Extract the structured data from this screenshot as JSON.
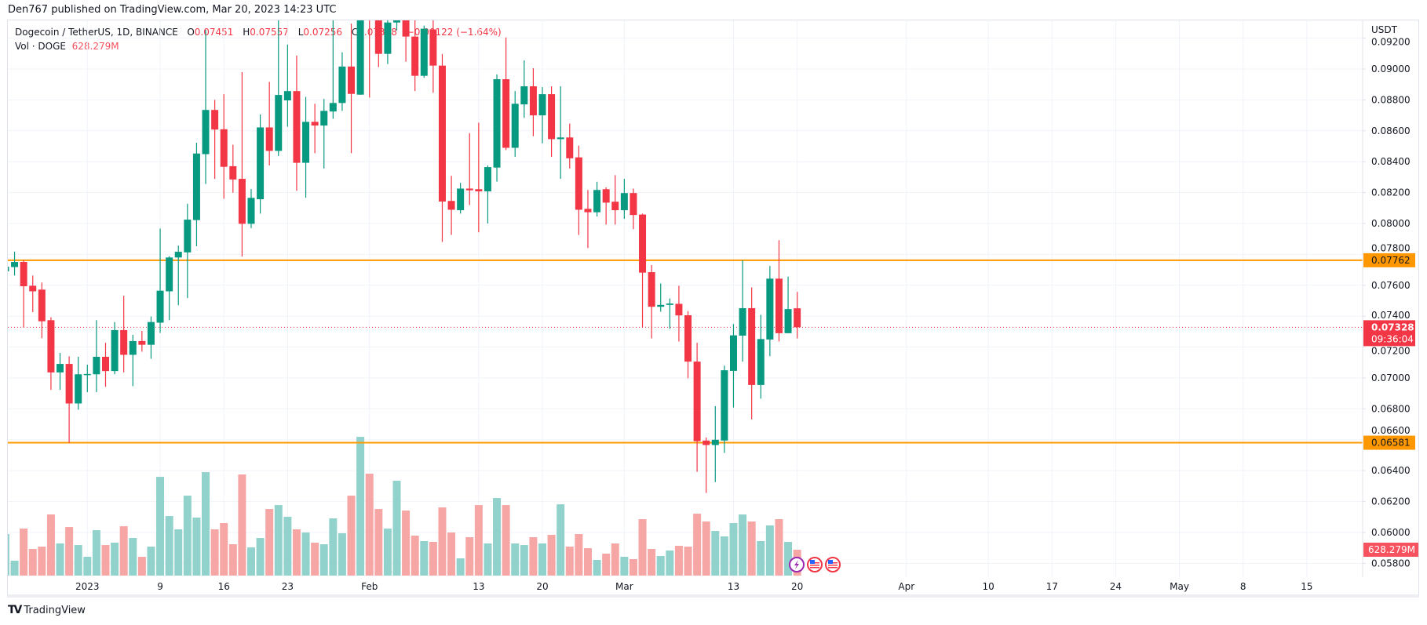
{
  "published": "Den767 published on TradingView.com, Mar 20, 2023 14:23 UTC",
  "legend": {
    "symbol": "Dogecoin / TetherUS, 1D, BINANCE",
    "open_label": "O",
    "open": "0.07451",
    "high_label": "H",
    "high": "0.07557",
    "low_label": "L",
    "low": "0.07256",
    "close_label": "C",
    "close": "0.07328",
    "change": "−0.00122 (−1.64%)",
    "volume_label": "Vol · DOGE",
    "volume": "628.279M"
  },
  "footer": {
    "logo_mark": "TV",
    "brand": "TradingView"
  },
  "colors": {
    "up": "#089981",
    "down": "#f23645",
    "volume_up": "#92d2cc",
    "volume_down": "#f5a6a5",
    "level_line": "#ff9800",
    "current_price": "#f23645"
  },
  "chart_data": {
    "type": "candlestick",
    "currency": "USDT",
    "ylim": [
      0.057,
      0.0932
    ],
    "grid": true,
    "y_ticks": [
      "0.09200",
      "0.09000",
      "0.08800",
      "0.08600",
      "0.08400",
      "0.08200",
      "0.08000",
      "0.07800",
      "0.07600",
      "0.07400",
      "0.07200",
      "0.07000",
      "0.06800",
      "0.06600",
      "0.06400",
      "0.06200",
      "0.06000",
      "0.05800"
    ],
    "x_ticks": [
      {
        "label": "2023",
        "date": "2023-01-01"
      },
      {
        "label": "9",
        "date": "2023-01-09"
      },
      {
        "label": "16",
        "date": "2023-01-16"
      },
      {
        "label": "23",
        "date": "2023-01-23"
      },
      {
        "label": "Feb",
        "date": "2023-02-01"
      },
      {
        "label": "13",
        "date": "2023-02-13"
      },
      {
        "label": "20",
        "date": "2023-02-20"
      },
      {
        "label": "Mar",
        "date": "2023-03-01"
      },
      {
        "label": "13",
        "date": "2023-03-13"
      },
      {
        "label": "20",
        "date": "2023-03-20"
      },
      {
        "label": "Apr",
        "date": "2023-04-01"
      },
      {
        "label": "10",
        "date": "2023-04-10"
      },
      {
        "label": "17",
        "date": "2023-04-17"
      },
      {
        "label": "24",
        "date": "2023-04-24"
      },
      {
        "label": "May",
        "date": "2023-05-01"
      },
      {
        "label": "8",
        "date": "2023-05-08"
      },
      {
        "label": "15",
        "date": "2023-05-15"
      }
    ],
    "levels": [
      {
        "price": 0.07762,
        "label": "0.07762"
      },
      {
        "price": 0.06581,
        "label": "0.06581"
      }
    ],
    "current_price": {
      "price": 0.07328,
      "label": "0.07328",
      "countdown": "09:36:04"
    },
    "current_volume_label": "628.279M",
    "event_icons": [
      "lightning-icon",
      "us-flag-icon",
      "us-flag-icon"
    ],
    "candle_fields": [
      "date",
      "open",
      "high",
      "low",
      "close",
      "volume_M"
    ],
    "candles": [
      [
        "2022-12-23",
        0.0769,
        0.0774,
        0.0766,
        0.0772,
        1009
      ],
      [
        "2022-12-24",
        0.07718,
        0.07817,
        0.07663,
        0.07751,
        362
      ],
      [
        "2022-12-25",
        0.07751,
        0.07762,
        0.07327,
        0.07594,
        1142
      ],
      [
        "2022-12-26",
        0.07597,
        0.07663,
        0.07426,
        0.07561,
        647
      ],
      [
        "2022-12-27",
        0.07572,
        0.07618,
        0.07257,
        0.07367,
        704
      ],
      [
        "2022-12-28",
        0.07374,
        0.07393,
        0.06923,
        0.07036,
        1485
      ],
      [
        "2022-12-29",
        0.07036,
        0.07162,
        0.06923,
        0.07091,
        781
      ],
      [
        "2022-12-30",
        0.07091,
        0.0714,
        0.06581,
        0.06835,
        1180
      ],
      [
        "2022-12-31",
        0.06835,
        0.07137,
        0.06795,
        0.07024,
        742
      ],
      [
        "2023-01-01",
        0.07024,
        0.07086,
        0.06908,
        0.07026,
        457
      ],
      [
        "2023-01-02",
        0.07024,
        0.07374,
        0.06908,
        0.07137,
        1104
      ],
      [
        "2023-01-03",
        0.07137,
        0.07228,
        0.06943,
        0.07045,
        742
      ],
      [
        "2023-01-04",
        0.07045,
        0.07362,
        0.07024,
        0.0731,
        800
      ],
      [
        "2023-01-05",
        0.0731,
        0.07532,
        0.07036,
        0.0715,
        1199
      ],
      [
        "2023-01-06",
        0.0715,
        0.07279,
        0.06947,
        0.07239,
        914
      ],
      [
        "2023-01-07",
        0.07239,
        0.07305,
        0.0717,
        0.07215,
        457
      ],
      [
        "2023-01-08",
        0.07215,
        0.07398,
        0.07124,
        0.07362,
        704
      ],
      [
        "2023-01-09",
        0.07358,
        0.07967,
        0.07292,
        0.07565,
        2399
      ],
      [
        "2023-01-10",
        0.07561,
        0.07788,
        0.07374,
        0.0778,
        1447
      ],
      [
        "2023-01-11",
        0.0778,
        0.07857,
        0.07471,
        0.07817,
        1123
      ],
      [
        "2023-01-12",
        0.07813,
        0.08128,
        0.07517,
        0.08025,
        1942
      ],
      [
        "2023-01-13",
        0.08022,
        0.08523,
        0.07853,
        0.08453,
        1409
      ],
      [
        "2023-01-14",
        0.08449,
        0.09254,
        0.08256,
        0.08735,
        2513
      ],
      [
        "2023-01-15",
        0.08735,
        0.088,
        0.08288,
        0.08608,
        1123
      ],
      [
        "2023-01-16",
        0.0861,
        0.08837,
        0.0816,
        0.08367,
        1276
      ],
      [
        "2023-01-17",
        0.08371,
        0.0851,
        0.08199,
        0.08285,
        762
      ],
      [
        "2023-01-18",
        0.08289,
        0.0898,
        0.07786,
        0.07998,
        2456
      ],
      [
        "2023-01-19",
        0.07998,
        0.08223,
        0.0797,
        0.08166,
        685
      ],
      [
        "2023-01-20",
        0.08157,
        0.08706,
        0.08064,
        0.08622,
        914
      ],
      [
        "2023-01-21",
        0.08622,
        0.08917,
        0.08376,
        0.0847,
        1618
      ],
      [
        "2023-01-22",
        0.0847,
        0.09327,
        0.08437,
        0.08832,
        1713
      ],
      [
        "2023-01-23",
        0.08797,
        0.09158,
        0.08627,
        0.08857,
        1428
      ],
      [
        "2023-01-24",
        0.08857,
        0.09087,
        0.08212,
        0.08393,
        1123
      ],
      [
        "2023-01-25",
        0.08393,
        0.0882,
        0.08166,
        0.08658,
        1047
      ],
      [
        "2023-01-26",
        0.08658,
        0.08775,
        0.08455,
        0.08634,
        800
      ],
      [
        "2023-01-27",
        0.08634,
        0.08806,
        0.08356,
        0.08729,
        762
      ],
      [
        "2023-01-28",
        0.08725,
        0.0935,
        0.08678,
        0.0878,
        1390
      ],
      [
        "2023-01-29",
        0.0878,
        0.09108,
        0.08729,
        0.09016,
        1028
      ],
      [
        "2023-01-30",
        0.09016,
        0.09294,
        0.08455,
        0.08839,
        1942
      ],
      [
        "2023-01-31",
        0.08834,
        0.0945,
        0.08833,
        0.0935,
        3370
      ],
      [
        "2023-02-01",
        0.0955,
        0.0965,
        0.08815,
        0.0935,
        2475
      ],
      [
        "2023-02-02",
        0.0935,
        0.0945,
        0.09012,
        0.09098,
        1618
      ],
      [
        "2023-02-03",
        0.09098,
        0.094,
        0.09032,
        0.09301,
        1142
      ],
      [
        "2023-02-04",
        0.09301,
        0.0945,
        0.0925,
        0.0935,
        2304
      ],
      [
        "2023-02-05",
        0.0937,
        0.0948,
        0.09047,
        0.0921,
        1580
      ],
      [
        "2023-02-06",
        0.0921,
        0.0935,
        0.08857,
        0.08956,
        971
      ],
      [
        "2023-02-07",
        0.08956,
        0.09281,
        0.08943,
        0.09261,
        838
      ],
      [
        "2023-02-08",
        0.09256,
        0.0935,
        0.08846,
        0.09022,
        819
      ],
      [
        "2023-02-09",
        0.09022,
        0.09097,
        0.07881,
        0.08142,
        1656
      ],
      [
        "2023-02-10",
        0.08146,
        0.08309,
        0.07926,
        0.08089,
        1047
      ],
      [
        "2023-02-11",
        0.08086,
        0.08263,
        0.08064,
        0.08226,
        419
      ],
      [
        "2023-02-12",
        0.08226,
        0.08585,
        0.0812,
        0.08215,
        933
      ],
      [
        "2023-02-13",
        0.08222,
        0.08652,
        0.07943,
        0.08208,
        1713
      ],
      [
        "2023-02-14",
        0.08208,
        0.08376,
        0.08,
        0.08365,
        781
      ],
      [
        "2023-02-15",
        0.08362,
        0.08965,
        0.08271,
        0.08934,
        1885
      ],
      [
        "2023-02-16",
        0.08934,
        0.09204,
        0.08475,
        0.0849,
        1713
      ],
      [
        "2023-02-17",
        0.0849,
        0.08857,
        0.08431,
        0.08775,
        781
      ],
      [
        "2023-02-18",
        0.08771,
        0.09056,
        0.08684,
        0.08888,
        742
      ],
      [
        "2023-02-19",
        0.08888,
        0.09005,
        0.08565,
        0.087,
        933
      ],
      [
        "2023-02-20",
        0.087,
        0.08883,
        0.08519,
        0.08837,
        781
      ],
      [
        "2023-02-21",
        0.08837,
        0.08888,
        0.08431,
        0.08546,
        990
      ],
      [
        "2023-02-22",
        0.08546,
        0.08888,
        0.08289,
        0.08557,
        1732
      ],
      [
        "2023-02-23",
        0.08557,
        0.08647,
        0.08356,
        0.08422,
        704
      ],
      [
        "2023-02-24",
        0.08428,
        0.08504,
        0.07926,
        0.08089,
        1009
      ],
      [
        "2023-02-25",
        0.08095,
        0.08217,
        0.07841,
        0.08073,
        666
      ],
      [
        "2023-02-26",
        0.08073,
        0.0827,
        0.08045,
        0.08217,
        381
      ],
      [
        "2023-02-27",
        0.08222,
        0.08234,
        0.07993,
        0.08135,
        533
      ],
      [
        "2023-02-28",
        0.08141,
        0.08313,
        0.07993,
        0.08086,
        781
      ],
      [
        "2023-03-01",
        0.08086,
        0.08289,
        0.0803,
        0.08197,
        457
      ],
      [
        "2023-03-02",
        0.08197,
        0.08226,
        0.07963,
        0.08055,
        400
      ],
      [
        "2023-03-03",
        0.08058,
        0.08064,
        0.07327,
        0.07682,
        1371
      ],
      [
        "2023-03-04",
        0.07685,
        0.07731,
        0.07256,
        0.07461,
        647
      ],
      [
        "2023-03-05",
        0.07461,
        0.07612,
        0.07429,
        0.07473,
        476
      ],
      [
        "2023-03-06",
        0.07473,
        0.07515,
        0.07318,
        0.07482,
        609
      ],
      [
        "2023-03-07",
        0.0748,
        0.07597,
        0.07236,
        0.07405,
        723
      ],
      [
        "2023-03-08",
        0.07406,
        0.07433,
        0.06998,
        0.07106,
        704
      ],
      [
        "2023-03-09",
        0.07106,
        0.07228,
        0.06393,
        0.06591,
        1504
      ],
      [
        "2023-03-10",
        0.06595,
        0.06615,
        0.06256,
        0.06566,
        1314
      ],
      [
        "2023-03-11",
        0.06566,
        0.06818,
        0.06326,
        0.066,
        1085
      ],
      [
        "2023-03-12",
        0.06595,
        0.0708,
        0.06515,
        0.0705,
        952
      ],
      [
        "2023-03-13",
        0.07046,
        0.07349,
        0.06809,
        0.07276,
        1276
      ],
      [
        "2023-03-14",
        0.07274,
        0.07762,
        0.07106,
        0.07452,
        1485
      ],
      [
        "2023-03-15",
        0.07452,
        0.07586,
        0.06732,
        0.06955,
        1314
      ],
      [
        "2023-03-16",
        0.06955,
        0.07409,
        0.06866,
        0.07252,
        838
      ],
      [
        "2023-03-17",
        0.07249,
        0.07725,
        0.07141,
        0.07643,
        1218
      ],
      [
        "2023-03-18",
        0.07643,
        0.07892,
        0.07236,
        0.0729,
        1371
      ],
      [
        "2023-03-19",
        0.0729,
        0.07656,
        0.0729,
        0.07446,
        819
      ],
      [
        "2023-03-20",
        0.07451,
        0.07557,
        0.07256,
        0.07328,
        628.279
      ]
    ]
  }
}
